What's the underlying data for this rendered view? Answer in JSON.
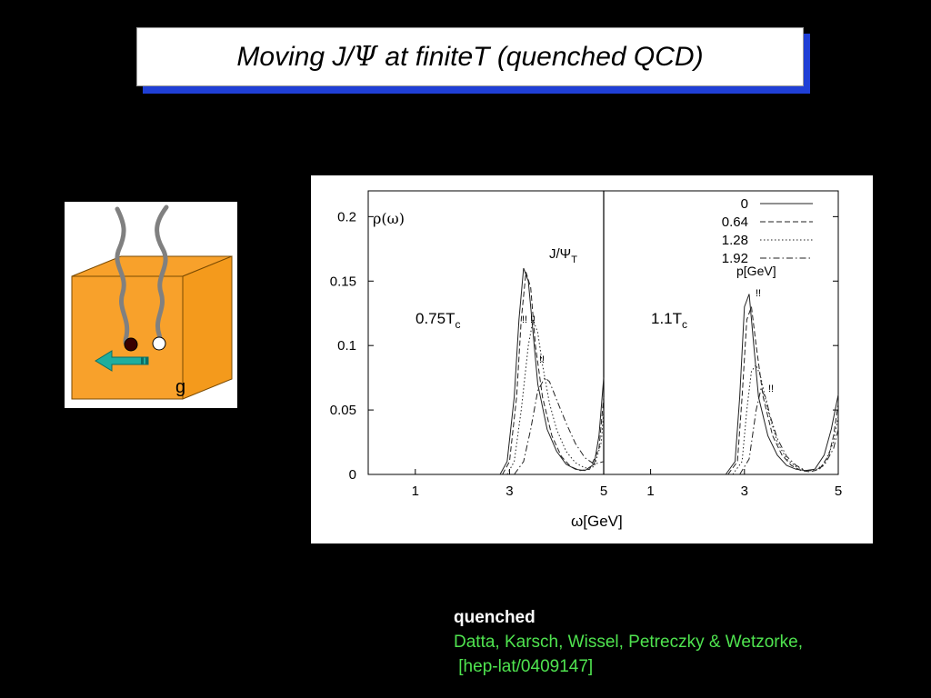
{
  "slide": {
    "title_pre": "Moving J/",
    "title_psi": "Ψ",
    "title_post": " at finiteT (quenched  QCD)"
  },
  "cube": {
    "gluon_label": "g",
    "cube_color": "#f8a12b",
    "string_color": "#808080",
    "quark_color": "#3a0000",
    "antiquark_color": "#ffffff",
    "arrow_color": "#1fae9e",
    "icons": [
      "cube-icon",
      "string-icon",
      "quark-icon",
      "antiquark-icon",
      "arrow-left-icon"
    ]
  },
  "caption": {
    "line1": "quenched",
    "line2": "Datta, Karsch, Wissel, Petreczky & Wetzorke,",
    "line3": " [hep-lat/0409147]",
    "color": "#4fe34f"
  },
  "chart_data": {
    "type": "line",
    "ylabel": "ρ(ω)",
    "xlabel": "ω[GeV]",
    "ylim": [
      0,
      0.22
    ],
    "yticks": [
      "0",
      "0.05",
      "0.1",
      "0.15",
      "0.2"
    ],
    "grid": false,
    "legend_title": "p[GeV]",
    "legend_placement": "top-right",
    "series_label": "J/ΨT",
    "panels": [
      {
        "label": "0.75Tc",
        "label_main": "0.75T",
        "label_sub": "c",
        "xlim": [
          0,
          5
        ],
        "xticks": [
          "1",
          "3",
          "5"
        ],
        "series": [
          {
            "name": "0",
            "style": "solid",
            "x": [
              2.8,
              2.95,
              3.1,
              3.2,
              3.3,
              3.4,
              3.5,
              3.6,
              3.8,
              4.0,
              4.2,
              4.4,
              4.6,
              4.8,
              4.9,
              5.0
            ],
            "y": [
              0,
              0.01,
              0.06,
              0.12,
              0.16,
              0.15,
              0.11,
              0.07,
              0.035,
              0.018,
              0.008,
              0.004,
              0.003,
              0.008,
              0.03,
              0.075
            ]
          },
          {
            "name": "0.64",
            "style": "dashed",
            "x": [
              2.85,
              3.0,
              3.15,
              3.25,
              3.35,
              3.45,
              3.55,
              3.7,
              3.9,
              4.1,
              4.3,
              4.5,
              4.7,
              4.9,
              5.0
            ],
            "y": [
              0,
              0.01,
              0.06,
              0.12,
              0.157,
              0.145,
              0.1,
              0.06,
              0.03,
              0.014,
              0.006,
              0.003,
              0.004,
              0.02,
              0.06
            ]
          },
          {
            "name": "1.28",
            "style": "dotted",
            "x": [
              2.95,
              3.1,
              3.25,
              3.4,
              3.5,
              3.6,
              3.7,
              3.85,
              4.0,
              4.2,
              4.4,
              4.6,
              4.8,
              4.95,
              5.0
            ],
            "y": [
              0,
              0.01,
              0.05,
              0.1,
              0.12,
              0.11,
              0.085,
              0.055,
              0.035,
              0.018,
              0.009,
              0.005,
              0.006,
              0.025,
              0.05
            ]
          },
          {
            "name": "1.92",
            "style": "dashdot",
            "x": [
              3.1,
              3.3,
              3.45,
              3.6,
              3.75,
              3.85,
              4.0,
              4.2,
              4.4,
              4.6,
              4.8,
              5.0
            ],
            "y": [
              0,
              0.01,
              0.035,
              0.065,
              0.075,
              0.072,
              0.058,
              0.04,
              0.024,
              0.013,
              0.008,
              0.01
            ]
          }
        ]
      },
      {
        "label": "1.1Tc",
        "label_main": "1.1T",
        "label_sub": "c",
        "xlim": [
          0,
          5
        ],
        "xticks": [
          "1",
          "3",
          "5"
        ],
        "series": [
          {
            "name": "0",
            "style": "solid",
            "x": [
              2.6,
              2.8,
              2.9,
              3.0,
              3.1,
              3.2,
              3.3,
              3.5,
              3.7,
              3.9,
              4.1,
              4.3,
              4.5,
              4.7,
              4.85,
              5.0
            ],
            "y": [
              0,
              0.01,
              0.06,
              0.13,
              0.14,
              0.1,
              0.06,
              0.03,
              0.015,
              0.007,
              0.004,
              0.003,
              0.004,
              0.015,
              0.035,
              0.062
            ]
          },
          {
            "name": "0.64",
            "style": "dashed",
            "x": [
              2.65,
              2.85,
              2.95,
              3.05,
              3.15,
              3.25,
              3.4,
              3.6,
              3.8,
              4.0,
              4.2,
              4.4,
              4.6,
              4.8,
              4.9,
              5.0
            ],
            "y": [
              0,
              0.01,
              0.06,
              0.12,
              0.13,
              0.1,
              0.06,
              0.03,
              0.015,
              0.007,
              0.003,
              0.002,
              0.004,
              0.015,
              0.03,
              0.055
            ]
          },
          {
            "name": "1.28",
            "style": "dotted",
            "x": [
              2.75,
              2.95,
              3.05,
              3.15,
              3.25,
              3.35,
              3.5,
              3.7,
              3.9,
              4.1,
              4.3,
              4.5,
              4.7,
              4.9,
              5.0
            ],
            "y": [
              0,
              0.01,
              0.05,
              0.08,
              0.085,
              0.075,
              0.05,
              0.025,
              0.012,
              0.006,
              0.003,
              0.003,
              0.008,
              0.025,
              0.045
            ]
          },
          {
            "name": "1.92",
            "style": "dashdot",
            "x": [
              2.9,
              3.1,
              3.25,
              3.35,
              3.45,
              3.55,
              3.7,
              3.9,
              4.1,
              4.3,
              4.5,
              4.7,
              4.9,
              5.0
            ],
            "y": [
              0,
              0.012,
              0.05,
              0.066,
              0.06,
              0.045,
              0.028,
              0.014,
              0.007,
              0.003,
              0.003,
              0.007,
              0.02,
              0.035
            ]
          }
        ]
      }
    ],
    "annotations": [
      "!!",
      "!!",
      "!!",
      "!!",
      "!!"
    ]
  }
}
